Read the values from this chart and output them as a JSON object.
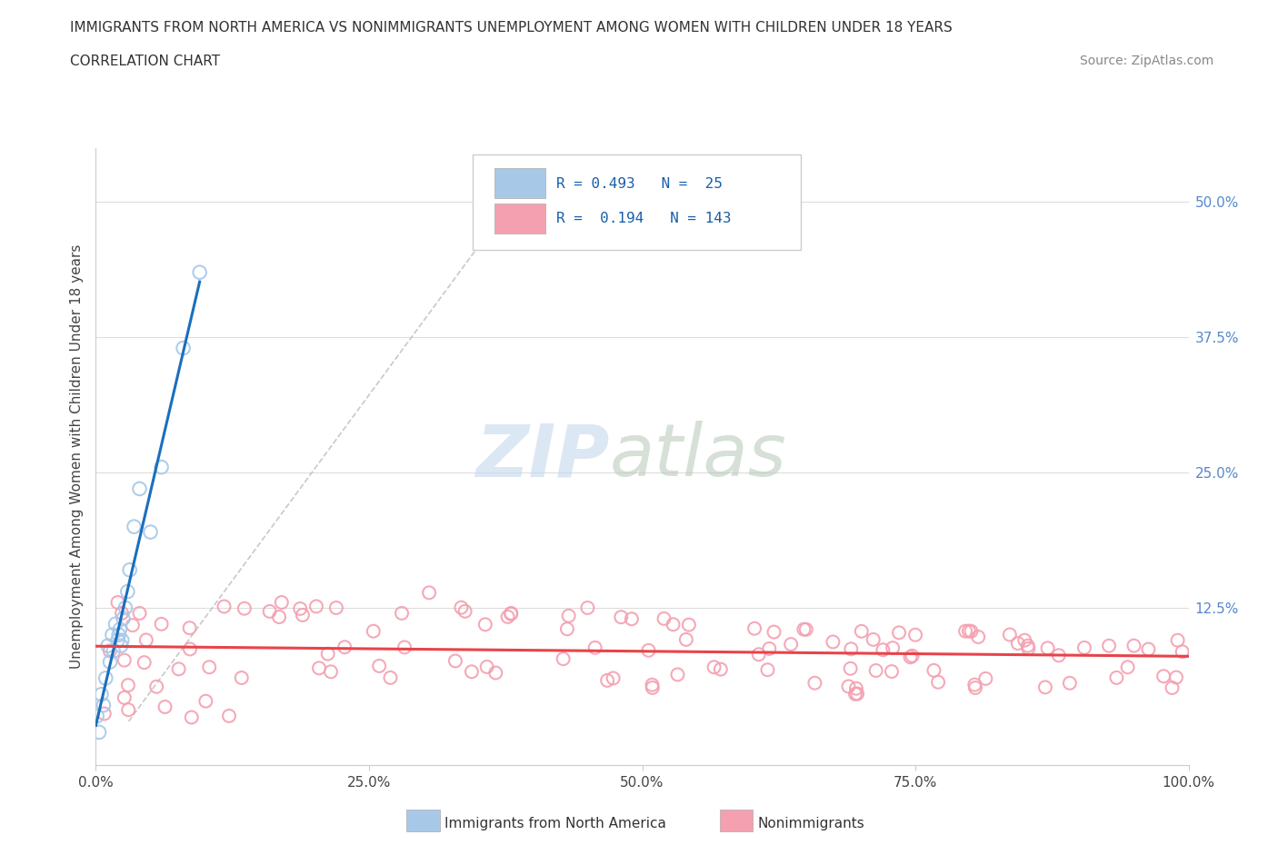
{
  "title_line1": "IMMIGRANTS FROM NORTH AMERICA VS NONIMMIGRANTS UNEMPLOYMENT AMONG WOMEN WITH CHILDREN UNDER 18 YEARS",
  "title_line2": "CORRELATION CHART",
  "source": "Source: ZipAtlas.com",
  "ylabel": "Unemployment Among Women with Children Under 18 years",
  "xlim": [
    0.0,
    1.0
  ],
  "ylim": [
    -0.02,
    0.55
  ],
  "color_immigrants": "#a8c8e8",
  "color_nonimmigrants": "#f4a0b0",
  "color_line_immigrants": "#1a6fbd",
  "color_line_nonimmigrants": "#e8434a",
  "background_color": "#ffffff",
  "watermark_zip_color": "#c8d8ee",
  "watermark_atlas_color": "#b8ccb8"
}
